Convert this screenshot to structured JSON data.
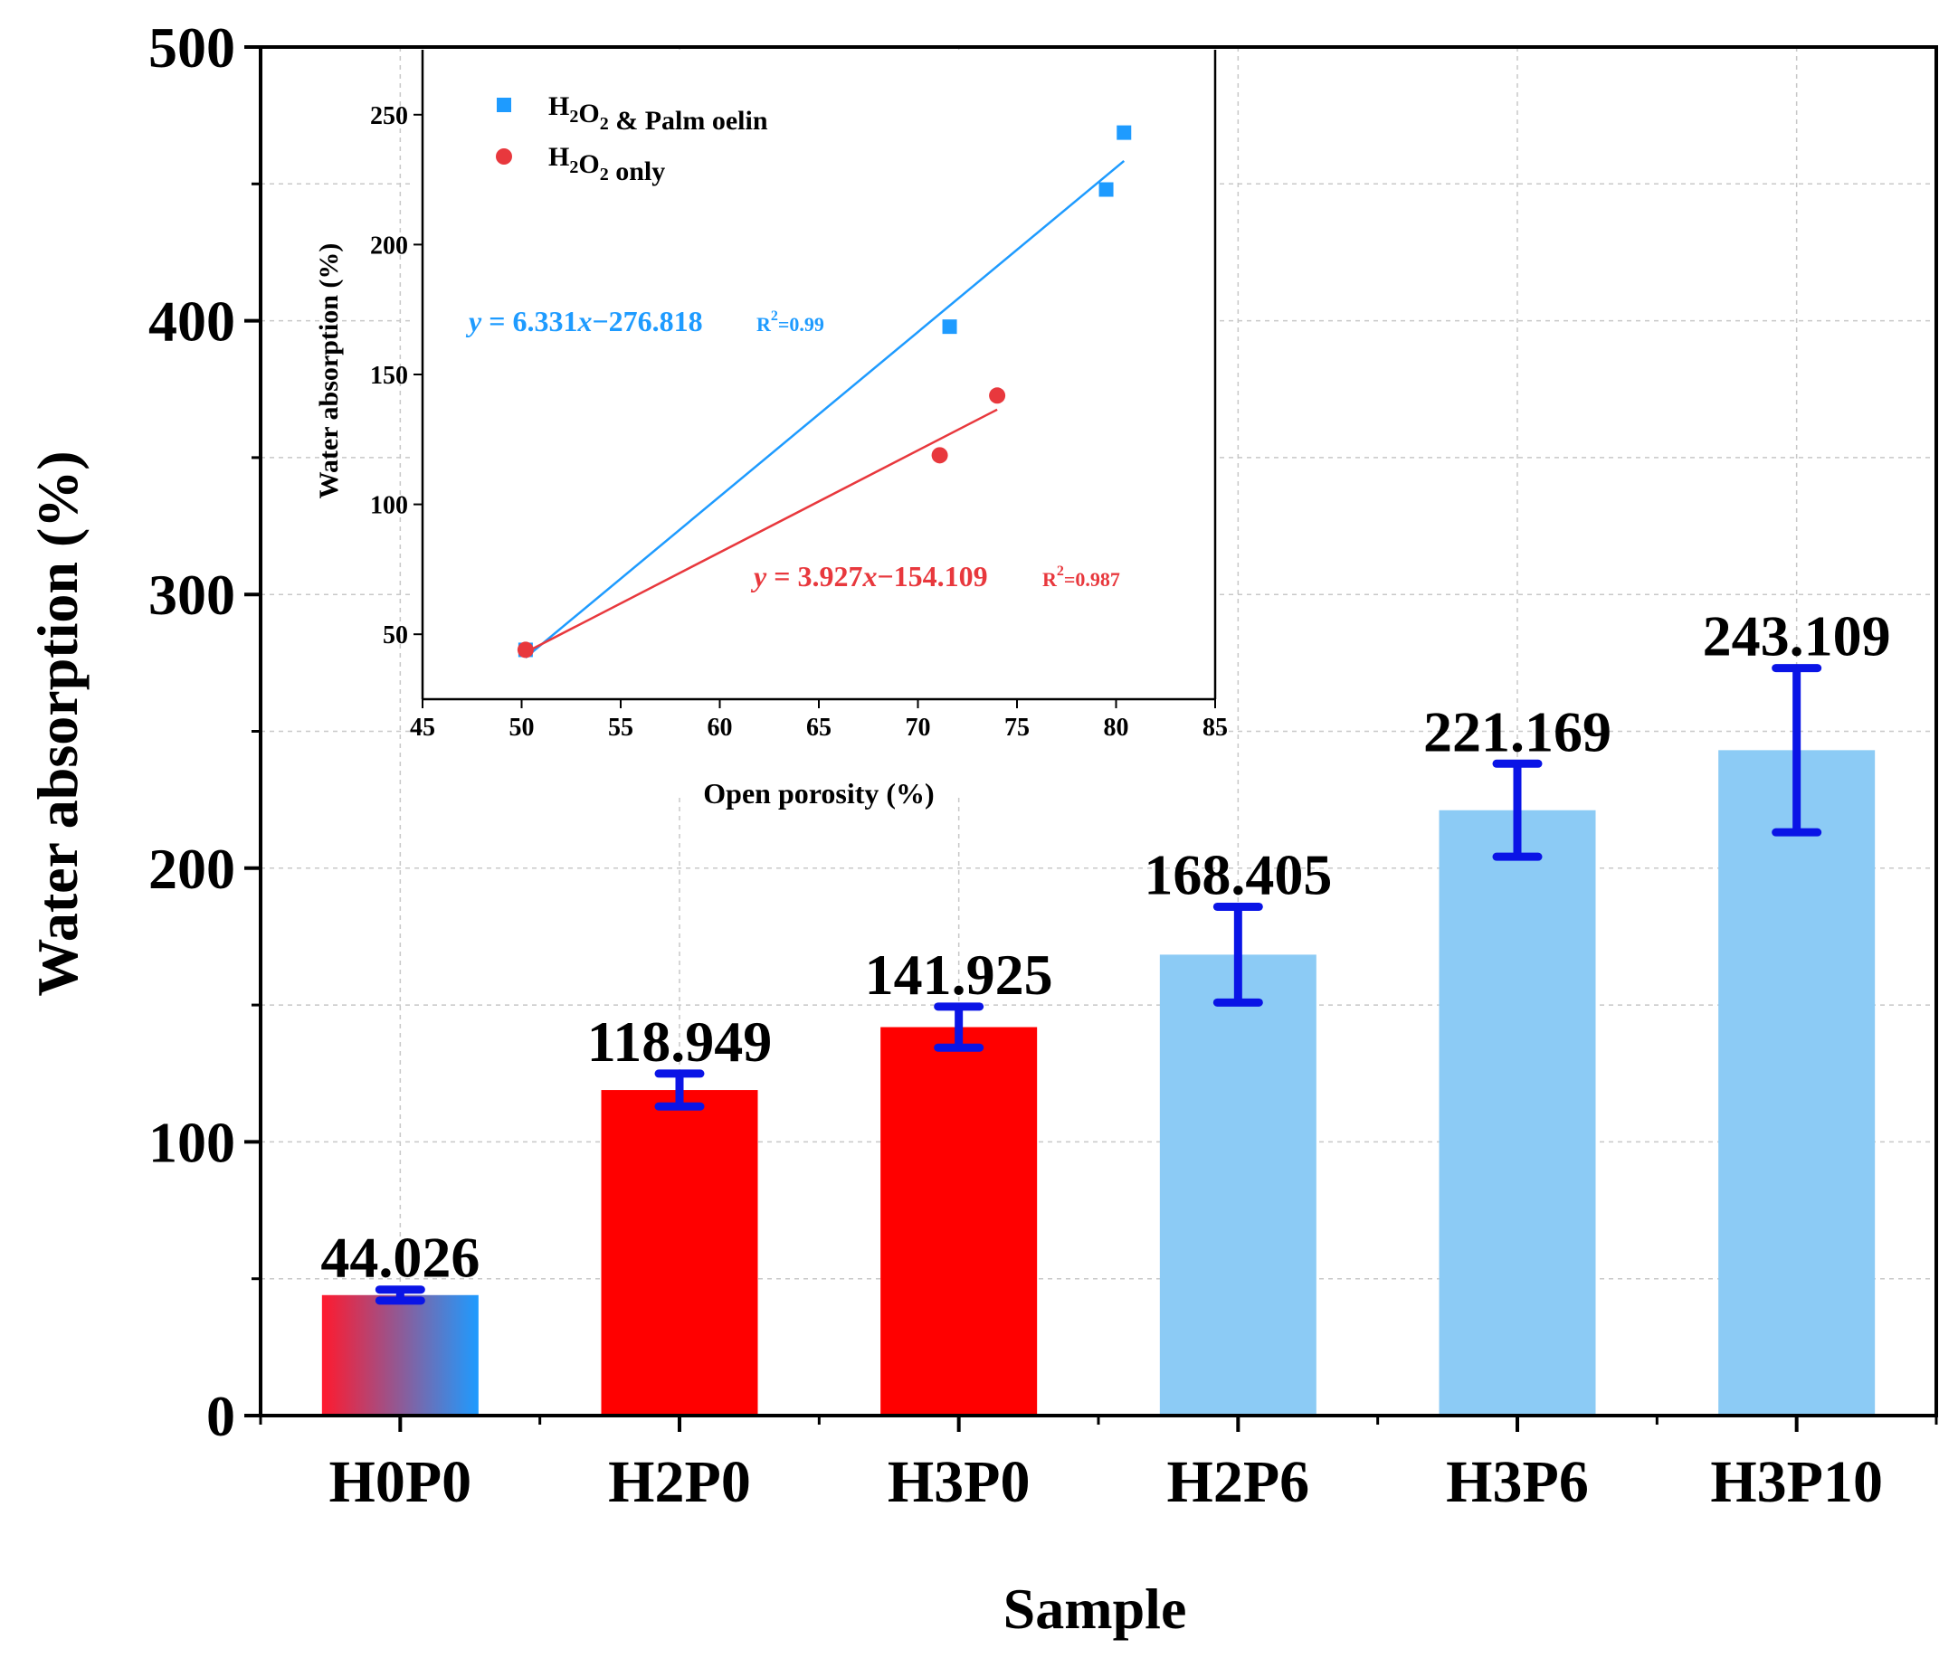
{
  "chart_data": [
    {
      "type": "bar",
      "title": "",
      "xlabel": "Sample",
      "ylabel": "Water absorption (%)",
      "ylim": [
        0,
        500
      ],
      "yticks": [
        0,
        100,
        200,
        300,
        400,
        500
      ],
      "grid": true,
      "categories": [
        "H0P0",
        "H2P0",
        "H3P0",
        "H2P6",
        "H3P6",
        "H3P10"
      ],
      "values": [
        44.026,
        118.949,
        141.925,
        168.405,
        221.169,
        243.109
      ],
      "value_labels": [
        "44.026",
        "118.949",
        "141.925",
        "168.405",
        "221.169",
        "243.109"
      ],
      "error": [
        2,
        6,
        7.5,
        17.5,
        17,
        30
      ],
      "bar_colors": [
        "gradient",
        "#ff0000",
        "#ff0000",
        "#8ccbf5",
        "#8ccbf5",
        "#8ccbf5"
      ],
      "gradient_colors": [
        "#ff1a2e",
        "#1e9bff"
      ],
      "error_color": "#0a14e6"
    },
    {
      "type": "scatter",
      "title": "",
      "xlabel": "Open porosity (%)",
      "ylabel": "Water absorption (%)",
      "xlim": [
        45,
        85
      ],
      "ylim": [
        25,
        275
      ],
      "xticks": [
        45,
        50,
        55,
        60,
        65,
        70,
        75,
        80,
        85
      ],
      "yticks": [
        50,
        100,
        150,
        200,
        250
      ],
      "legend_position": "top-left",
      "series": [
        {
          "name": "H2O2 & Palm oelin",
          "marker": "square",
          "color": "#1e9bff",
          "points": [
            [
              50.2,
              44.0
            ],
            [
              71.6,
              168.4
            ],
            [
              79.5,
              221.2
            ],
            [
              80.4,
              243.1
            ]
          ],
          "fit": {
            "x0": 50.2,
            "x1": 80.4,
            "slope": 6.331,
            "intercept": -276.818
          },
          "equation": "y = 6.331x−276.818",
          "r2": "R2=0.99"
        },
        {
          "name": "H2O2 only",
          "marker": "circle",
          "color": "#e8383d",
          "points": [
            [
              50.2,
              44.0
            ],
            [
              71.1,
              118.9
            ],
            [
              74.0,
              141.9
            ]
          ],
          "fit": {
            "x0": 50.2,
            "x1": 74.0,
            "slope": 3.927,
            "intercept": -154.109
          },
          "equation": "y = 3.927x−154.109",
          "r2": "R2=0.987"
        }
      ]
    }
  ]
}
